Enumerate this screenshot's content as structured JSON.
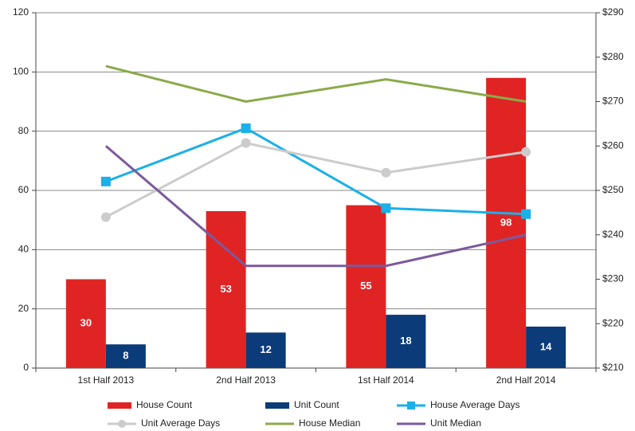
{
  "chart_data": {
    "type": "bar",
    "categories": [
      "1st Half 2013",
      "2nd Half 2013",
      "1st Half 2014",
      "2nd Half 2014"
    ],
    "series": [
      {
        "name": "House Count",
        "type": "bar",
        "color": "#e02424",
        "values": [
          30,
          53,
          55,
          98
        ]
      },
      {
        "name": "Unit Count",
        "type": "bar",
        "color": "#0b3b78",
        "values": [
          8,
          12,
          18,
          14
        ]
      },
      {
        "name": "House Average Days",
        "type": "line",
        "marker": "square",
        "color": "#1ab0e8",
        "values": [
          63,
          81,
          54,
          52
        ]
      },
      {
        "name": "Unit Average Days",
        "type": "line",
        "marker": "circle",
        "color": "#cccccc",
        "values": [
          51,
          76,
          66,
          73
        ]
      },
      {
        "name": "House Median",
        "type": "line",
        "color": "#8aaa4a",
        "axis": "y2",
        "values": [
          278,
          270,
          275,
          270
        ]
      },
      {
        "name": "Unit Median",
        "type": "line",
        "color": "#7b5a9c",
        "axis": "y2",
        "values": [
          260,
          233,
          233,
          240
        ]
      }
    ],
    "ylim": [
      0,
      120
    ],
    "yticks": [
      0,
      20,
      40,
      60,
      80,
      100,
      120
    ],
    "y2lim": [
      210,
      290
    ],
    "y2ticks": [
      {
        "value": 210,
        "label": "$210"
      },
      {
        "value": 220,
        "label": "$220"
      },
      {
        "value": 230,
        "label": "$230"
      },
      {
        "value": 240,
        "label": "$240"
      },
      {
        "value": 250,
        "label": "$250"
      },
      {
        "value": 260,
        "label": "$260"
      },
      {
        "value": 270,
        "label": "$270"
      },
      {
        "value": 280,
        "label": "$280"
      },
      {
        "value": 290,
        "label": "$290"
      }
    ],
    "grid": true,
    "data_labels": true,
    "legend": "bottom"
  }
}
